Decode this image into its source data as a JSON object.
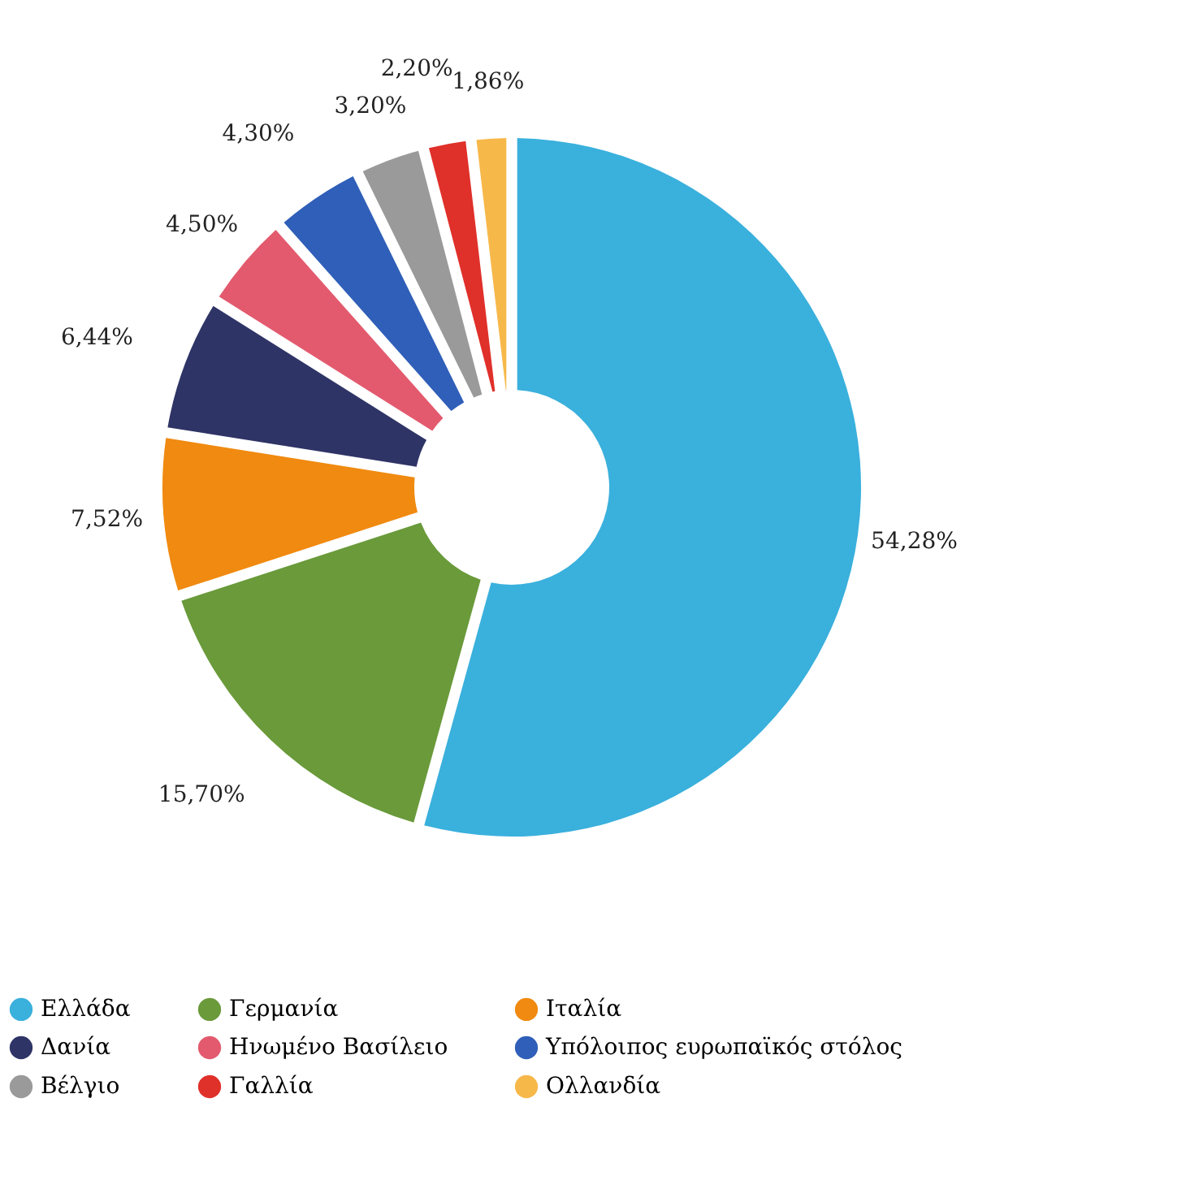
{
  "chart_data": {
    "type": "donut",
    "categories": [
      "Ελλάδα",
      "Γερμανία",
      "Ιταλία",
      "Δανία",
      "Ηνωμένο Βασίλειο",
      "Υπόλοιπος ευρωπαϊκός στόλος",
      "Βέλγιο",
      "Γαλλία",
      "Ολλανδία"
    ],
    "values": [
      54.28,
      15.7,
      7.52,
      6.44,
      4.5,
      4.3,
      3.2,
      2.2,
      1.86
    ],
    "value_labels": [
      "54,28%",
      "15,70%",
      "7,52%",
      "6,44%",
      "4,50%",
      "4,30%",
      "3,20%",
      "2,20%",
      "1,86%"
    ],
    "colors": [
      "#3ab0dc",
      "#6a9a3a",
      "#f08a10",
      "#2e3466",
      "#e35a6e",
      "#2f5fb8",
      "#9a9a9a",
      "#e0302a",
      "#f7b84a"
    ],
    "legend": "bottom"
  }
}
